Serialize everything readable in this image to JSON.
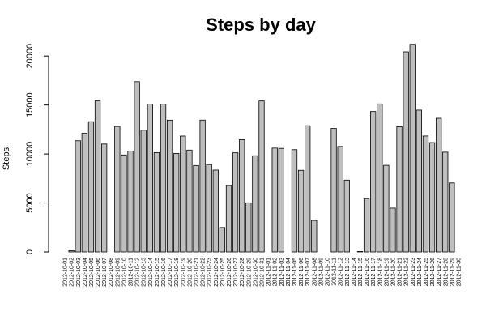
{
  "chart_data": {
    "type": "bar",
    "title": "Steps by day",
    "xlabel": "",
    "ylabel": "Steps",
    "ylim": [
      0,
      22000
    ],
    "yticks": [
      0,
      5000,
      10000,
      15000,
      20000
    ],
    "grid": false,
    "bar_color": "#bebebe",
    "bar_border": "#000000",
    "categories": [
      "2012-10-01",
      "2012-10-02",
      "2012-10-03",
      "2012-10-04",
      "2012-10-05",
      "2012-10-06",
      "2012-10-07",
      "2012-10-08",
      "2012-10-09",
      "2012-10-10",
      "2012-10-11",
      "2012-10-12",
      "2012-10-13",
      "2012-10-14",
      "2012-10-15",
      "2012-10-16",
      "2012-10-17",
      "2012-10-18",
      "2012-10-19",
      "2012-10-20",
      "2012-10-21",
      "2012-10-22",
      "2012-10-23",
      "2012-10-24",
      "2012-10-25",
      "2012-10-26",
      "2012-10-27",
      "2012-10-28",
      "2012-10-29",
      "2012-10-30",
      "2012-10-31",
      "2012-11-01",
      "2012-11-02",
      "2012-11-03",
      "2012-11-04",
      "2012-11-05",
      "2012-11-06",
      "2012-11-07",
      "2012-11-08",
      "2012-11-09",
      "2012-11-10",
      "2012-11-11",
      "2012-11-12",
      "2012-11-13",
      "2012-11-14",
      "2012-11-15",
      "2012-11-16",
      "2012-11-17",
      "2012-11-18",
      "2012-11-19",
      "2012-11-20",
      "2012-11-21",
      "2012-11-22",
      "2012-11-23",
      "2012-11-24",
      "2012-11-25",
      "2012-11-26",
      "2012-11-27",
      "2012-11-28",
      "2012-11-29",
      "2012-11-30"
    ],
    "values": [
      0,
      126,
      11352,
      12116,
      13294,
      15420,
      11015,
      0,
      12811,
      9900,
      10304,
      17382,
      12426,
      15098,
      10139,
      15084,
      13452,
      10056,
      11829,
      10395,
      8821,
      13460,
      8918,
      8355,
      2492,
      6778,
      10119,
      11458,
      5018,
      9819,
      15414,
      0,
      10600,
      10571,
      0,
      10439,
      8334,
      12883,
      3219,
      0,
      0,
      12608,
      10765,
      7336,
      0,
      41,
      5441,
      14339,
      15110,
      8841,
      4472,
      12787,
      20427,
      21194,
      14478,
      11834,
      11162,
      13646,
      10183,
      7047,
      0
    ]
  }
}
